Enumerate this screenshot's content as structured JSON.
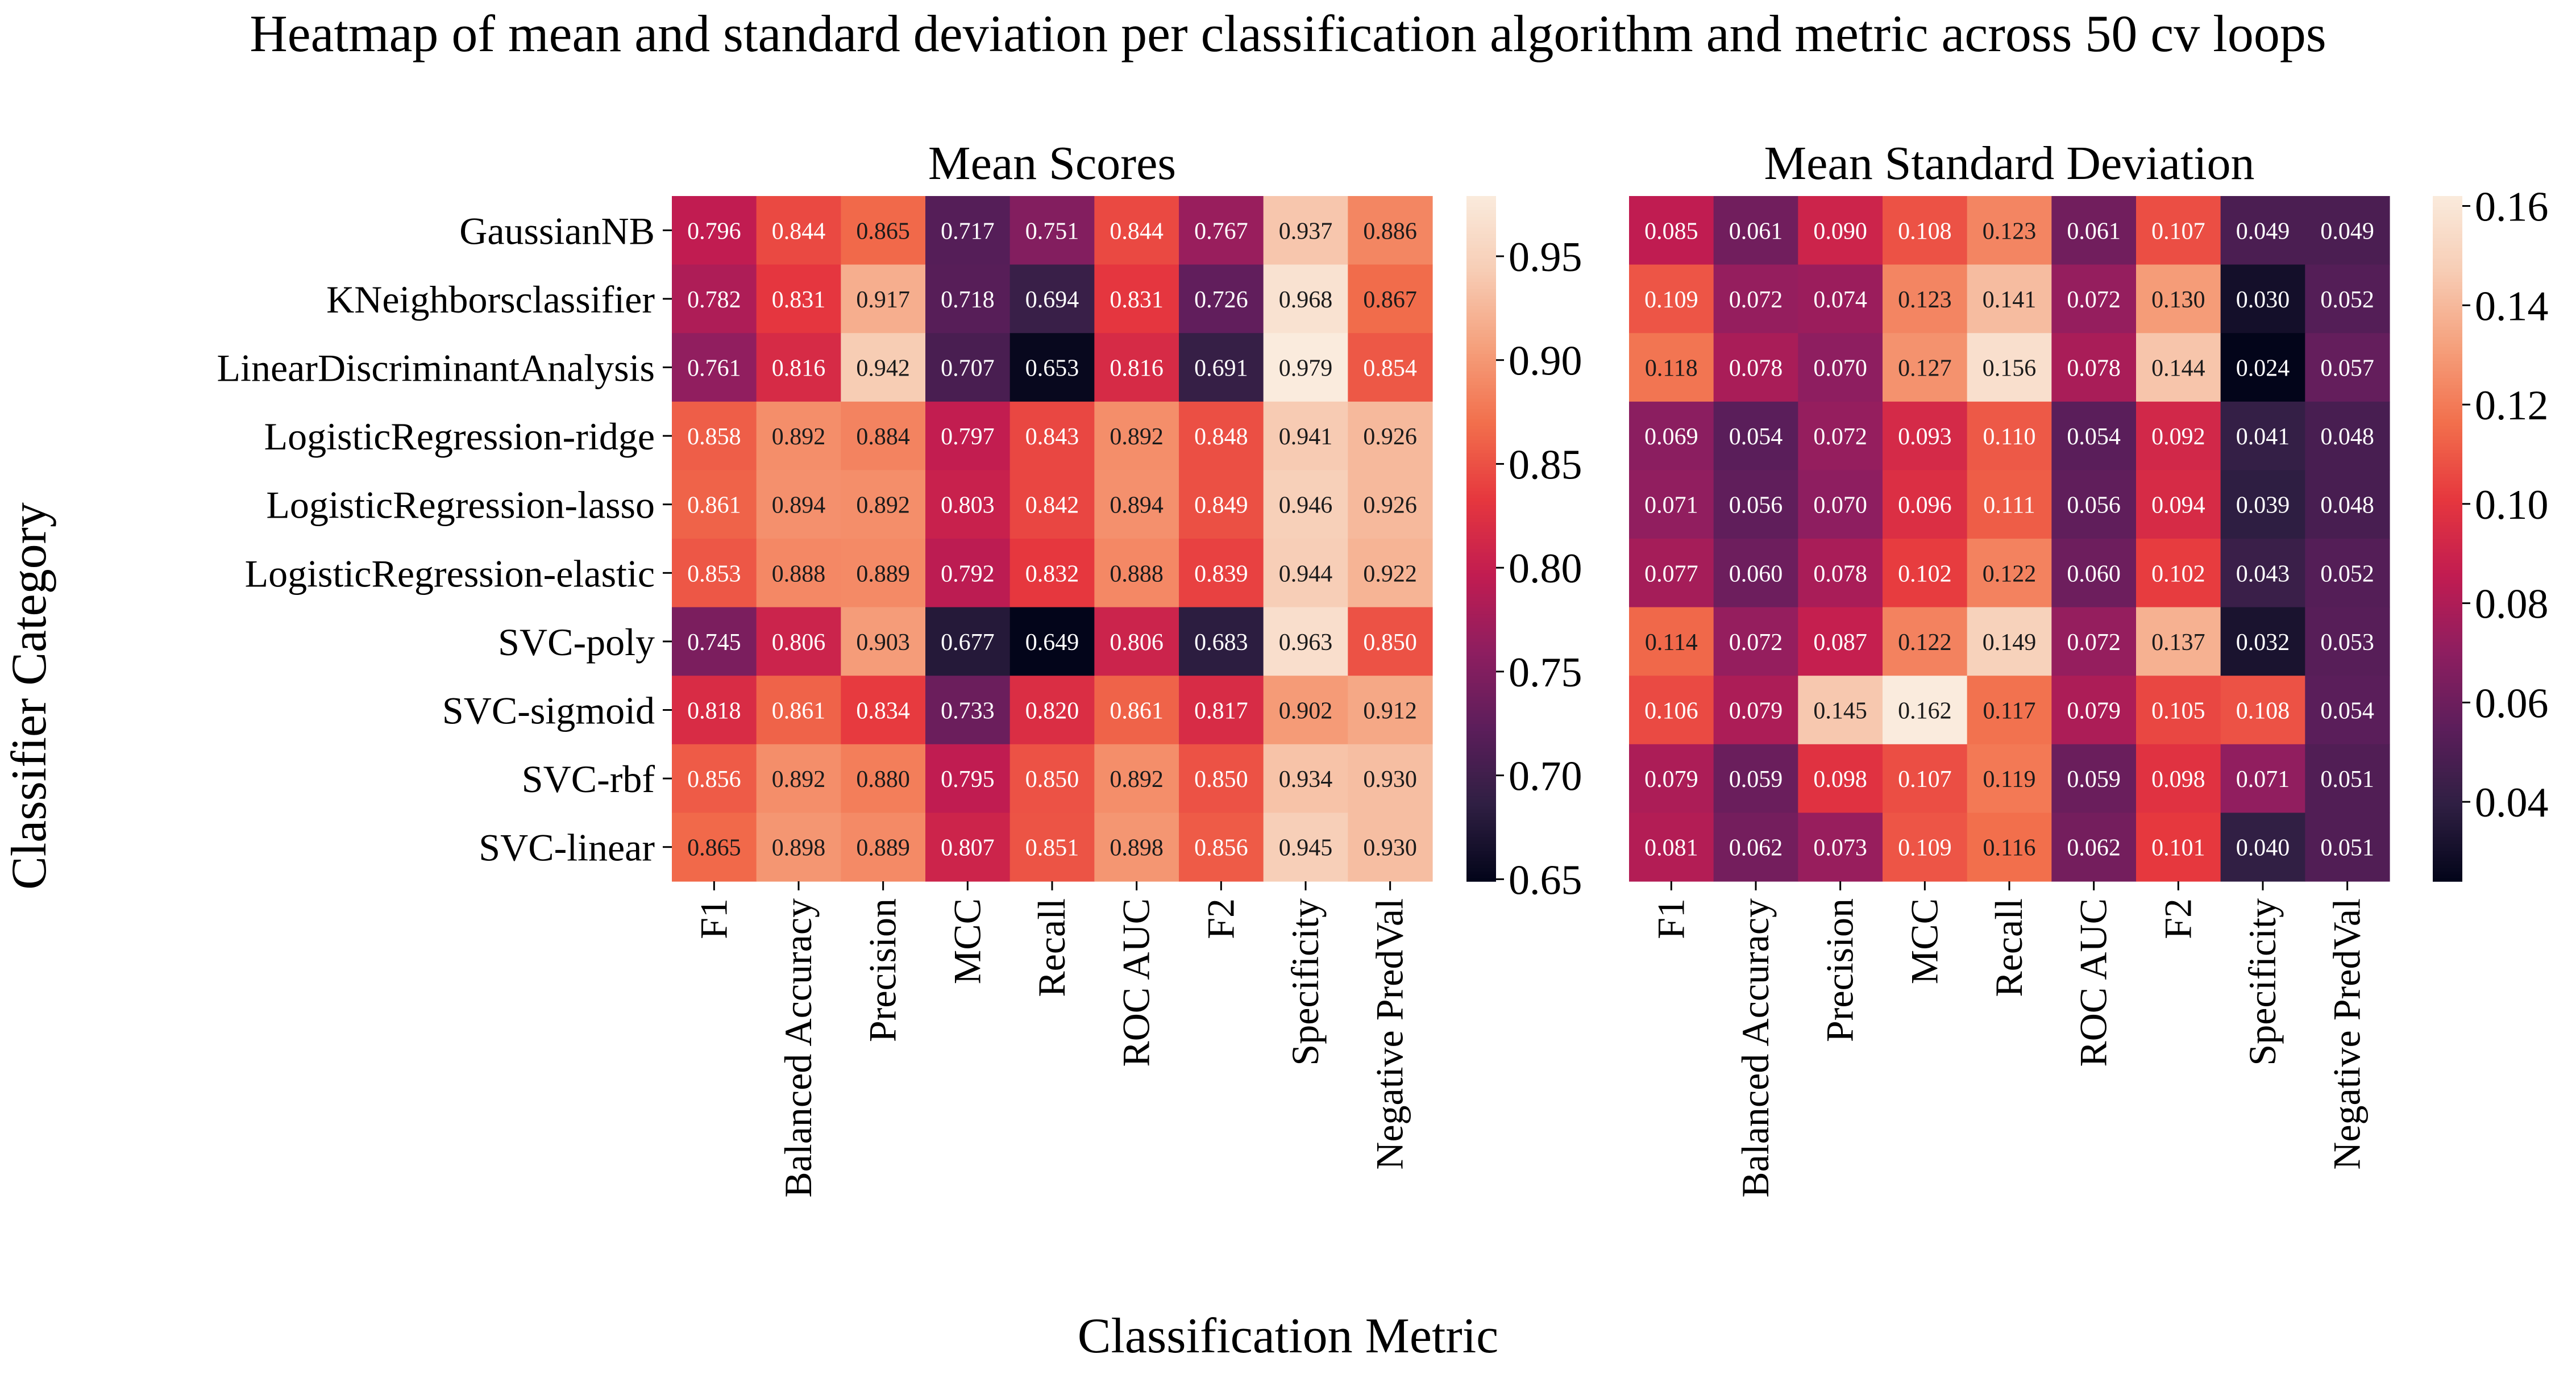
{
  "figure": {
    "suptitle": "Heatmap of mean and standard deviation per classification algorithm and metric across 50 cv loops",
    "ylabel": "Classifier Category",
    "xlabel": "Classification Metric"
  },
  "colormap": {
    "name": "rocket",
    "stops": [
      "#03051a",
      "#2f1f43",
      "#5c1e5b",
      "#8e1e60",
      "#c11c51",
      "#e6373e",
      "#f26f4c",
      "#f5a07c",
      "#f7cdb5",
      "#faebdd"
    ]
  },
  "chart_data": [
    {
      "type": "heatmap",
      "title": "Mean Scores",
      "rows": [
        "GaussianNB",
        "KNeighborsclassifier",
        "LinearDiscriminantAnalysis",
        "LogisticRegression-ridge",
        "LogisticRegression-lasso",
        "LogisticRegression-elastic",
        "SVC-poly",
        "SVC-sigmoid",
        "SVC-rbf",
        "SVC-linear"
      ],
      "columns": [
        "F1",
        "Balanced Accuracy",
        "Precision",
        "MCC",
        "Recall",
        "ROC AUC",
        "F2",
        "Specificity",
        "Negative PredVal"
      ],
      "values": [
        [
          0.796,
          0.844,
          0.865,
          0.717,
          0.751,
          0.844,
          0.767,
          0.937,
          0.886
        ],
        [
          0.782,
          0.831,
          0.917,
          0.718,
          0.694,
          0.831,
          0.726,
          0.968,
          0.867
        ],
        [
          0.761,
          0.816,
          0.942,
          0.707,
          0.653,
          0.816,
          0.691,
          0.979,
          0.854
        ],
        [
          0.858,
          0.892,
          0.884,
          0.797,
          0.843,
          0.892,
          0.848,
          0.941,
          0.926
        ],
        [
          0.861,
          0.894,
          0.892,
          0.803,
          0.842,
          0.894,
          0.849,
          0.946,
          0.926
        ],
        [
          0.853,
          0.888,
          0.889,
          0.792,
          0.832,
          0.888,
          0.839,
          0.944,
          0.922
        ],
        [
          0.745,
          0.806,
          0.903,
          0.677,
          0.649,
          0.806,
          0.683,
          0.963,
          0.85
        ],
        [
          0.818,
          0.861,
          0.834,
          0.733,
          0.82,
          0.861,
          0.817,
          0.902,
          0.912
        ],
        [
          0.856,
          0.892,
          0.88,
          0.795,
          0.85,
          0.892,
          0.85,
          0.934,
          0.93
        ],
        [
          0.865,
          0.898,
          0.889,
          0.807,
          0.851,
          0.898,
          0.856,
          0.945,
          0.93
        ]
      ],
      "value_labels": [
        [
          "0.796",
          "0.844",
          "0.865",
          "0.717",
          "0.751",
          "0.844",
          "0.767",
          "0.937",
          "0.886"
        ],
        [
          "0.782",
          "0.831",
          "0.917",
          "0.718",
          "0.694",
          "0.831",
          "0.726",
          "0.968",
          "0.867"
        ],
        [
          "0.761",
          "0.816",
          "0.942",
          "0.707",
          "0.653",
          "0.816",
          "0.691",
          "0.979",
          "0.854"
        ],
        [
          "0.858",
          "0.892",
          "0.884",
          "0.797",
          "0.843",
          "0.892",
          "0.848",
          "0.941",
          "0.926"
        ],
        [
          "0.861",
          "0.894",
          "0.892",
          "0.803",
          "0.842",
          "0.894",
          "0.849",
          "0.946",
          "0.926"
        ],
        [
          "0.853",
          "0.888",
          "0.889",
          "0.792",
          "0.832",
          "0.888",
          "0.839",
          "0.944",
          "0.922"
        ],
        [
          "0.745",
          "0.806",
          "0.903",
          "0.677",
          "0.649",
          "0.806",
          "0.683",
          "0.963",
          "0.850"
        ],
        [
          "0.818",
          "0.861",
          "0.834",
          "0.733",
          "0.820",
          "0.861",
          "0.817",
          "0.902",
          "0.912"
        ],
        [
          "0.856",
          "0.892",
          "0.880",
          "0.795",
          "0.850",
          "0.892",
          "0.850",
          "0.934",
          "0.930"
        ],
        [
          "0.865",
          "0.898",
          "0.889",
          "0.807",
          "0.851",
          "0.898",
          "0.856",
          "0.945",
          "0.930"
        ]
      ],
      "color_range": [
        0.649,
        0.979
      ],
      "colorbar_ticks": [
        0.65,
        0.7,
        0.75,
        0.8,
        0.85,
        0.9,
        0.95
      ],
      "colorbar_tick_labels": [
        "0.65",
        "0.70",
        "0.75",
        "0.80",
        "0.85",
        "0.90",
        "0.95"
      ]
    },
    {
      "type": "heatmap",
      "title": "Mean Standard Deviation",
      "rows": [
        "GaussianNB",
        "KNeighborsclassifier",
        "LinearDiscriminantAnalysis",
        "LogisticRegression-ridge",
        "LogisticRegression-lasso",
        "LogisticRegression-elastic",
        "SVC-poly",
        "SVC-sigmoid",
        "SVC-rbf",
        "SVC-linear"
      ],
      "columns": [
        "F1",
        "Balanced Accuracy",
        "Precision",
        "MCC",
        "Recall",
        "ROC AUC",
        "F2",
        "Specificity",
        "Negative PredVal"
      ],
      "values": [
        [
          0.085,
          0.061,
          0.09,
          0.108,
          0.123,
          0.061,
          0.107,
          0.049,
          0.049
        ],
        [
          0.109,
          0.072,
          0.074,
          0.123,
          0.141,
          0.072,
          0.13,
          0.03,
          0.052
        ],
        [
          0.118,
          0.078,
          0.07,
          0.127,
          0.156,
          0.078,
          0.144,
          0.024,
          0.057
        ],
        [
          0.069,
          0.054,
          0.072,
          0.093,
          0.11,
          0.054,
          0.092,
          0.041,
          0.048
        ],
        [
          0.071,
          0.056,
          0.07,
          0.096,
          0.111,
          0.056,
          0.094,
          0.039,
          0.048
        ],
        [
          0.077,
          0.06,
          0.078,
          0.102,
          0.122,
          0.06,
          0.102,
          0.043,
          0.052
        ],
        [
          0.114,
          0.072,
          0.087,
          0.122,
          0.149,
          0.072,
          0.137,
          0.032,
          0.053
        ],
        [
          0.106,
          0.079,
          0.145,
          0.162,
          0.117,
          0.079,
          0.105,
          0.108,
          0.054
        ],
        [
          0.079,
          0.059,
          0.098,
          0.107,
          0.119,
          0.059,
          0.098,
          0.071,
          0.051
        ],
        [
          0.081,
          0.062,
          0.073,
          0.109,
          0.116,
          0.062,
          0.101,
          0.04,
          0.051
        ]
      ],
      "value_labels": [
        [
          "0.085",
          "0.061",
          "0.090",
          "0.108",
          "0.123",
          "0.061",
          "0.107",
          "0.049",
          "0.049"
        ],
        [
          "0.109",
          "0.072",
          "0.074",
          "0.123",
          "0.141",
          "0.072",
          "0.130",
          "0.030",
          "0.052"
        ],
        [
          "0.118",
          "0.078",
          "0.070",
          "0.127",
          "0.156",
          "0.078",
          "0.144",
          "0.024",
          "0.057"
        ],
        [
          "0.069",
          "0.054",
          "0.072",
          "0.093",
          "0.110",
          "0.054",
          "0.092",
          "0.041",
          "0.048"
        ],
        [
          "0.071",
          "0.056",
          "0.070",
          "0.096",
          "0.111",
          "0.056",
          "0.094",
          "0.039",
          "0.048"
        ],
        [
          "0.077",
          "0.060",
          "0.078",
          "0.102",
          "0.122",
          "0.060",
          "0.102",
          "0.043",
          "0.052"
        ],
        [
          "0.114",
          "0.072",
          "0.087",
          "0.122",
          "0.149",
          "0.072",
          "0.137",
          "0.032",
          "0.053"
        ],
        [
          "0.106",
          "0.079",
          "0.145",
          "0.162",
          "0.117",
          "0.079",
          "0.105",
          "0.108",
          "0.054"
        ],
        [
          "0.079",
          "0.059",
          "0.098",
          "0.107",
          "0.119",
          "0.059",
          "0.098",
          "0.071",
          "0.051"
        ],
        [
          "0.081",
          "0.062",
          "0.073",
          "0.109",
          "0.116",
          "0.062",
          "0.101",
          "0.040",
          "0.051"
        ]
      ],
      "color_range": [
        0.024,
        0.162
      ],
      "colorbar_ticks": [
        0.04,
        0.06,
        0.08,
        0.1,
        0.12,
        0.14,
        0.16
      ],
      "colorbar_tick_labels": [
        "0.04",
        "0.06",
        "0.08",
        "0.10",
        "0.12",
        "0.14",
        "0.16"
      ]
    }
  ]
}
